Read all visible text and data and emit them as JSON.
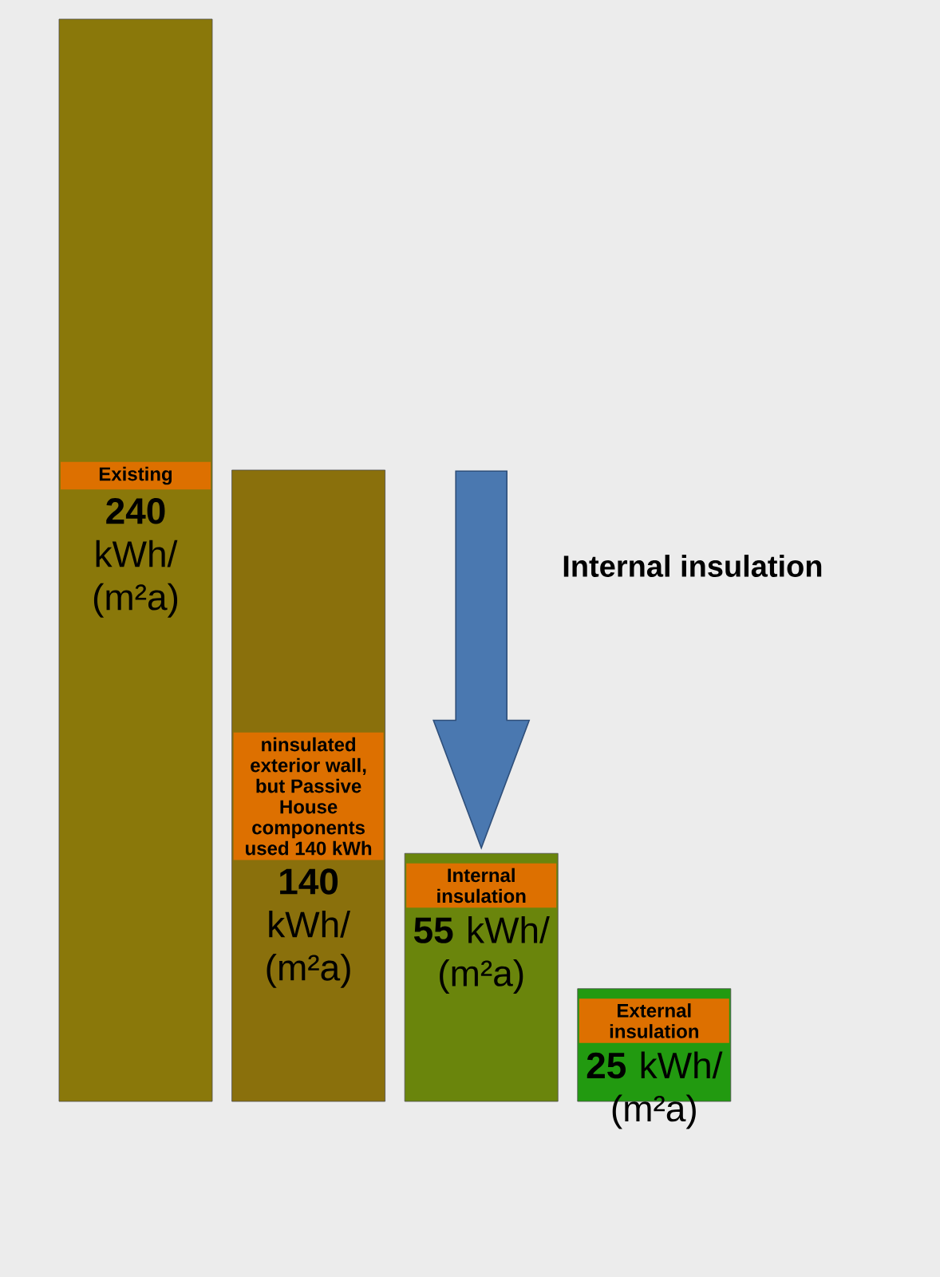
{
  "chart_data": {
    "type": "bar",
    "categories": [
      "Existing",
      "ninsulated exterior wall, but Passive House components used 140 kWh",
      "Internal insulation",
      "External insulation"
    ],
    "values": [
      240,
      140,
      55,
      25
    ],
    "colors": [
      "#8a780a",
      "#8a700c",
      "#6a850c",
      "#229a10"
    ],
    "value_labels": [
      "**240** kWh/ (m²a)",
      "**140** kWh/ (m²a)",
      "**55** kWh/ (m²a)",
      "**25** kWh/ (m²a)"
    ],
    "annotations": [
      "Internal insulation"
    ]
  }
}
